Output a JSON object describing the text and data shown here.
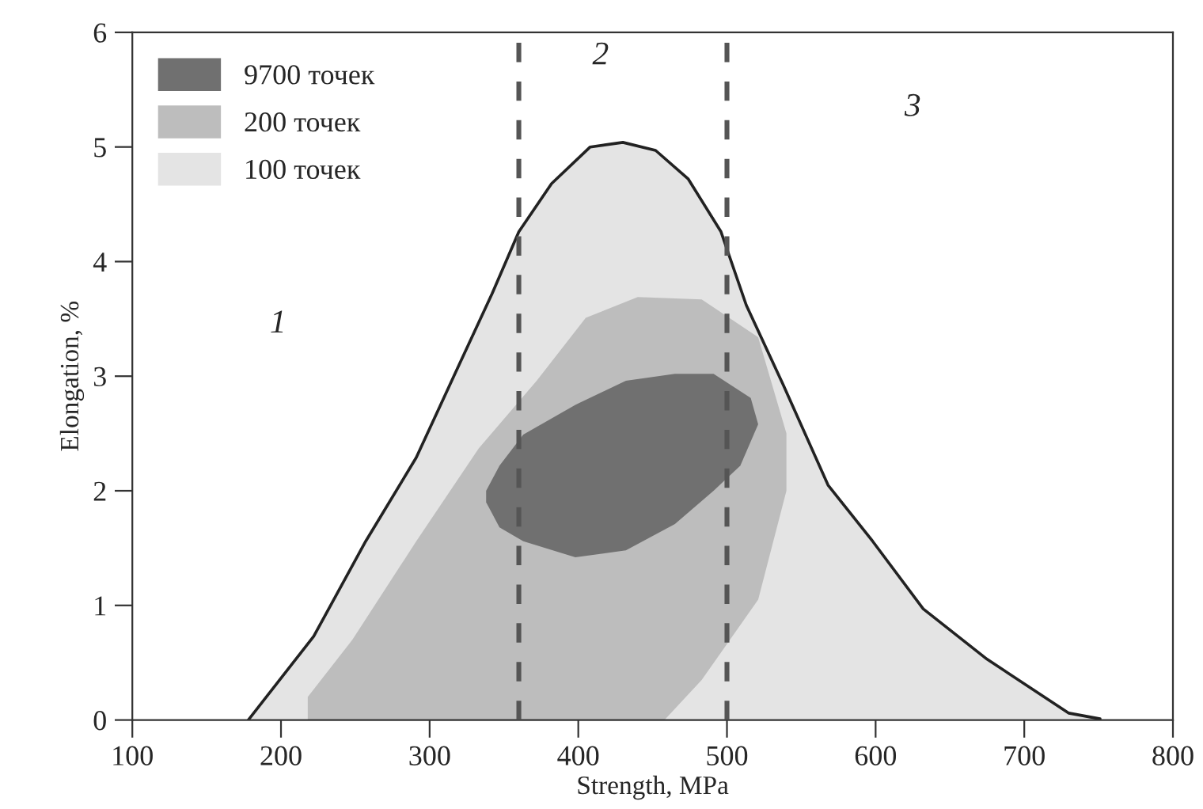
{
  "chart_data": {
    "type": "area",
    "xlabel": "Strength, MPa",
    "ylabel": "Elongation, %",
    "xlim": [
      100,
      800
    ],
    "ylim": [
      0,
      6
    ],
    "xticks": [
      100,
      200,
      300,
      400,
      500,
      600,
      700,
      800
    ],
    "yticks": [
      0,
      1,
      2,
      3,
      4,
      5,
      6
    ],
    "grid": false,
    "legend": "top left",
    "series": [
      {
        "name": "100 точек",
        "color": "#e4e4e4",
        "x": [
          178,
          222,
          257,
          291,
          317,
          342,
          360,
          382,
          408,
          430,
          452,
          474,
          496,
          513,
          538,
          568,
          598,
          632,
          675,
          730,
          751
        ],
        "values": [
          0,
          0.73,
          1.56,
          2.29,
          3.02,
          3.72,
          4.26,
          4.68,
          5.0,
          5.04,
          4.97,
          4.72,
          4.26,
          3.62,
          2.92,
          2.05,
          1.56,
          0.97,
          0.53,
          0.06,
          0.01
        ]
      },
      {
        "name": "200 точек",
        "color": "#bdbdbd",
        "x": [
          218,
          218,
          248,
          291,
          333,
          372,
          405,
          440,
          483,
          521,
          540,
          540,
          521,
          483,
          458
        ],
        "values": [
          0,
          0.2,
          0.7,
          1.56,
          2.37,
          2.96,
          3.51,
          3.69,
          3.67,
          3.34,
          2.5,
          2.0,
          1.05,
          0.35,
          0
        ]
      },
      {
        "name": "9700 точек",
        "color": "#707070",
        "x": [
          338,
          347,
          363,
          398,
          432,
          465,
          491,
          516,
          521,
          509,
          491,
          465,
          432,
          398,
          363,
          347,
          338
        ],
        "values": [
          2.0,
          2.22,
          2.49,
          2.75,
          2.96,
          3.02,
          3.02,
          2.81,
          2.58,
          2.22,
          2.0,
          1.71,
          1.48,
          1.42,
          1.56,
          1.68,
          1.9
        ]
      }
    ],
    "ref_lines": [
      {
        "axis": "x",
        "value": 360,
        "color": "#555555",
        "line_style": "dashed"
      },
      {
        "axis": "x",
        "value": 500,
        "color": "#555555",
        "line_style": "dashed"
      }
    ],
    "annotations": [
      "1",
      "2",
      "3"
    ]
  }
}
